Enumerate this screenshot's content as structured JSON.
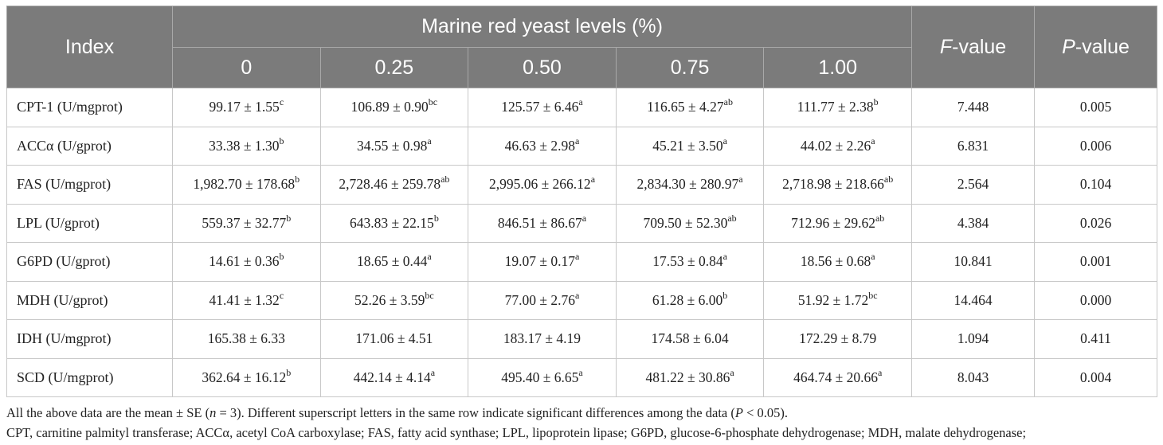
{
  "header": {
    "index": "Index",
    "group": "Marine red yeast levels (%)",
    "levels": [
      "0",
      "0.25",
      "0.50",
      "0.75",
      "1.00"
    ],
    "f_letter": "F",
    "f_suffix": "-value",
    "p_letter": "P",
    "p_suffix": "-value"
  },
  "rows": [
    {
      "index": "CPT-1 (U/mgprot)",
      "cells": [
        [
          "99.17 ± 1.55",
          "c"
        ],
        [
          "106.89 ± 0.90",
          "bc"
        ],
        [
          "125.57 ± 6.46",
          "a"
        ],
        [
          "116.65 ± 4.27",
          "ab"
        ],
        [
          "111.77 ± 2.38",
          "b"
        ]
      ],
      "f": "7.448",
      "p": "0.005"
    },
    {
      "index": "ACCα (U/gprot)",
      "cells": [
        [
          "33.38 ± 1.30",
          "b"
        ],
        [
          "34.55 ± 0.98",
          "a"
        ],
        [
          "46.63 ± 2.98",
          "a"
        ],
        [
          "45.21 ± 3.50",
          "a"
        ],
        [
          "44.02 ± 2.26",
          "a"
        ]
      ],
      "f": "6.831",
      "p": "0.006"
    },
    {
      "index": "FAS (U/mgprot)",
      "cells": [
        [
          "1,982.70 ± 178.68",
          "b"
        ],
        [
          "2,728.46 ± 259.78",
          "ab"
        ],
        [
          "2,995.06 ± 266.12",
          "a"
        ],
        [
          "2,834.30 ± 280.97",
          "a"
        ],
        [
          "2,718.98 ± 218.66",
          "ab"
        ]
      ],
      "f": "2.564",
      "p": "0.104"
    },
    {
      "index": "LPL (U/gprot)",
      "cells": [
        [
          "559.37 ± 32.77",
          "b"
        ],
        [
          "643.83 ± 22.15",
          "b"
        ],
        [
          "846.51 ± 86.67",
          "a"
        ],
        [
          "709.50 ± 52.30",
          "ab"
        ],
        [
          "712.96 ± 29.62",
          "ab"
        ]
      ],
      "f": "4.384",
      "p": "0.026"
    },
    {
      "index": "G6PD (U/gprot)",
      "cells": [
        [
          "14.61 ± 0.36",
          "b"
        ],
        [
          "18.65 ± 0.44",
          "a"
        ],
        [
          "19.07 ± 0.17",
          "a"
        ],
        [
          "17.53 ± 0.84",
          "a"
        ],
        [
          "18.56 ± 0.68",
          "a"
        ]
      ],
      "f": "10.841",
      "p": "0.001"
    },
    {
      "index": "MDH (U/gprot)",
      "cells": [
        [
          "41.41 ± 1.32",
          "c"
        ],
        [
          "52.26 ± 3.59",
          "bc"
        ],
        [
          "77.00 ± 2.76",
          "a"
        ],
        [
          "61.28 ± 6.00",
          "b"
        ],
        [
          "51.92 ± 1.72",
          "bc"
        ]
      ],
      "f": "14.464",
      "p": "0.000"
    },
    {
      "index": "IDH (U/mgprot)",
      "cells": [
        [
          "165.38 ± 6.33",
          ""
        ],
        [
          "171.06 ± 4.51",
          ""
        ],
        [
          "183.17 ± 4.19",
          ""
        ],
        [
          "174.58 ± 6.04",
          ""
        ],
        [
          "172.29 ± 8.79",
          ""
        ]
      ],
      "f": "1.094",
      "p": "0.411"
    },
    {
      "index": "SCD (U/mgprot)",
      "cells": [
        [
          "362.64 ± 16.12",
          "b"
        ],
        [
          "442.14 ± 4.14",
          "a"
        ],
        [
          "495.40 ± 6.65",
          "a"
        ],
        [
          "481.22 ± 30.86",
          "a"
        ],
        [
          "464.74 ± 20.66",
          "a"
        ]
      ],
      "f": "8.043",
      "p": "0.004"
    }
  ],
  "notes": {
    "line1": [
      "All the above data are the mean ± SE (",
      "n",
      " = 3). Different superscript letters in the same row indicate significant differences among the data (",
      "P",
      " < 0.05)."
    ],
    "line2": "CPT, carnitine palmityl transferase; ACCα, acetyl CoA carboxylase; FAS, fatty acid synthase; LPL, lipoprotein lipase; G6PD, glucose-6-phosphate dehydrogenase; MDH, malate dehydrogenase;"
  }
}
